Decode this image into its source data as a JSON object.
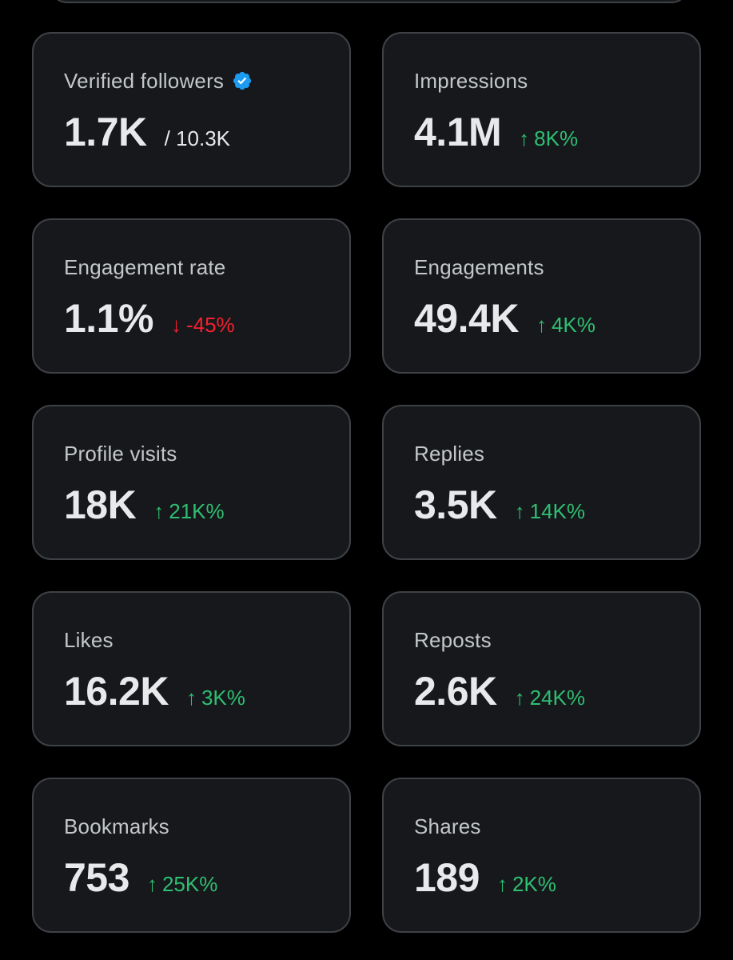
{
  "colors": {
    "background": "#000000",
    "card": "#16181c",
    "border": "#3e4145",
    "up": "#2fbf71",
    "down": "#f4212e",
    "verified": "#1d9bf0"
  },
  "metrics": [
    {
      "label": "Verified followers",
      "value": "1.7K",
      "sub": "/ 10.3K",
      "verified_icon": "verified-badge-icon"
    },
    {
      "label": "Impressions",
      "value": "4.1M",
      "arrow": "↑",
      "change": "8K%"
    },
    {
      "label": "Engagement rate",
      "value": "1.1%",
      "arrow": "↓",
      "change": "-45%"
    },
    {
      "label": "Engagements",
      "value": "49.4K",
      "arrow": "↑",
      "change": "4K%"
    },
    {
      "label": "Profile visits",
      "value": "18K",
      "arrow": "↑",
      "change": "21K%"
    },
    {
      "label": "Replies",
      "value": "3.5K",
      "arrow": "↑",
      "change": "14K%"
    },
    {
      "label": "Likes",
      "value": "16.2K",
      "arrow": "↑",
      "change": "3K%"
    },
    {
      "label": "Reposts",
      "value": "2.6K",
      "arrow": "↑",
      "change": "24K%"
    },
    {
      "label": "Bookmarks",
      "value": "753",
      "arrow": "↑",
      "change": "25K%"
    },
    {
      "label": "Shares",
      "value": "189",
      "arrow": "↑",
      "change": "2K%"
    }
  ]
}
